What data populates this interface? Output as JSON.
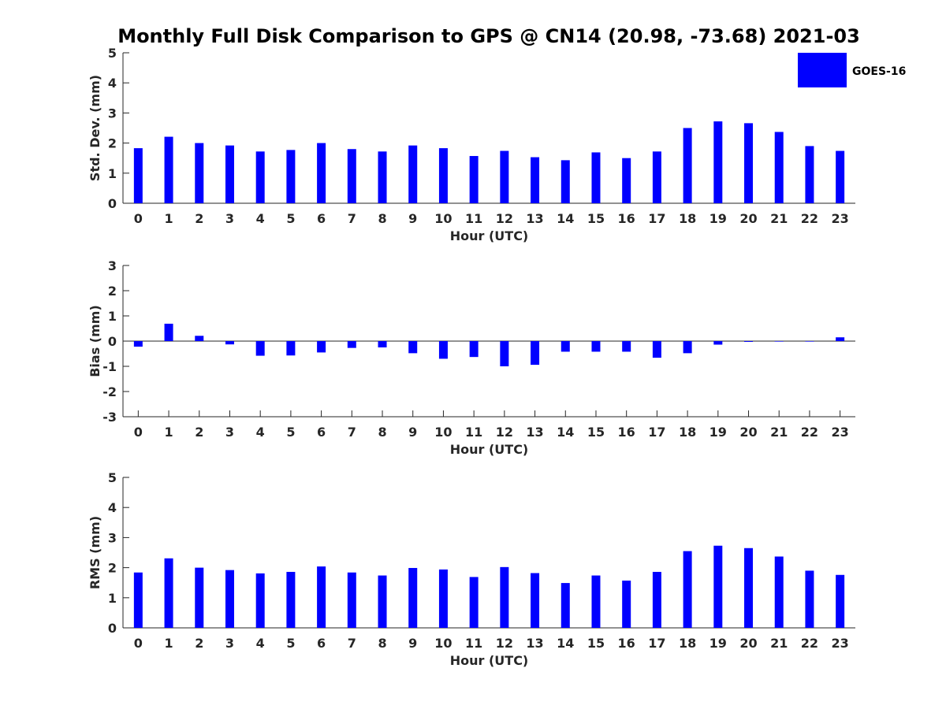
{
  "title": "Monthly Full Disk Comparison to GPS @ CN14 (20.98, -73.68) 2021-03",
  "legend": {
    "label": "GOES-16",
    "color": "#0000ff"
  },
  "chart_data": [
    {
      "type": "bar",
      "categories": [
        "0",
        "1",
        "2",
        "3",
        "4",
        "5",
        "6",
        "7",
        "8",
        "9",
        "10",
        "11",
        "12",
        "13",
        "14",
        "15",
        "16",
        "17",
        "18",
        "19",
        "20",
        "21",
        "22",
        "23"
      ],
      "series": [
        {
          "name": "GOES-16",
          "values": [
            1.83,
            2.21,
            2.0,
            1.92,
            1.72,
            1.77,
            2.0,
            1.8,
            1.72,
            1.92,
            1.83,
            1.57,
            1.74,
            1.53,
            1.43,
            1.69,
            1.5,
            1.72,
            2.5,
            2.72,
            2.66,
            2.37,
            1.9,
            1.74
          ]
        }
      ],
      "xlabel": "Hour (UTC)",
      "ylabel": "Std. Dev. (mm)",
      "ylim": [
        0,
        5
      ],
      "yticks": [
        "0",
        "1",
        "2",
        "3",
        "4",
        "5"
      ]
    },
    {
      "type": "bar",
      "categories": [
        "0",
        "1",
        "2",
        "3",
        "4",
        "5",
        "6",
        "7",
        "8",
        "9",
        "10",
        "11",
        "12",
        "13",
        "14",
        "15",
        "16",
        "17",
        "18",
        "19",
        "20",
        "21",
        "22",
        "23"
      ],
      "series": [
        {
          "name": "GOES-16",
          "values": [
            -0.22,
            0.69,
            0.21,
            -0.13,
            -0.58,
            -0.57,
            -0.45,
            -0.27,
            -0.25,
            -0.48,
            -0.7,
            -0.63,
            -1.0,
            -0.94,
            -0.42,
            -0.42,
            -0.42,
            -0.66,
            -0.48,
            -0.14,
            -0.03,
            -0.02,
            -0.02,
            0.15
          ]
        }
      ],
      "xlabel": "Hour (UTC)",
      "ylabel": "Bias (mm)",
      "ylim": [
        -3,
        3
      ],
      "yticks": [
        "-3",
        "-2",
        "-1",
        "0",
        "1",
        "2",
        "3"
      ]
    },
    {
      "type": "bar",
      "categories": [
        "0",
        "1",
        "2",
        "3",
        "4",
        "5",
        "6",
        "7",
        "8",
        "9",
        "10",
        "11",
        "12",
        "13",
        "14",
        "15",
        "16",
        "17",
        "18",
        "19",
        "20",
        "21",
        "22",
        "23"
      ],
      "series": [
        {
          "name": "GOES-16",
          "values": [
            1.84,
            2.31,
            2.0,
            1.92,
            1.81,
            1.86,
            2.04,
            1.84,
            1.74,
            1.99,
            1.94,
            1.69,
            2.02,
            1.82,
            1.49,
            1.74,
            1.57,
            1.86,
            2.55,
            2.73,
            2.65,
            2.37,
            1.9,
            1.76
          ]
        }
      ],
      "xlabel": "Hour (UTC)",
      "ylabel": "RMS (mm)",
      "ylim": [
        0,
        5
      ],
      "yticks": [
        "0",
        "1",
        "2",
        "3",
        "4",
        "5"
      ]
    }
  ]
}
